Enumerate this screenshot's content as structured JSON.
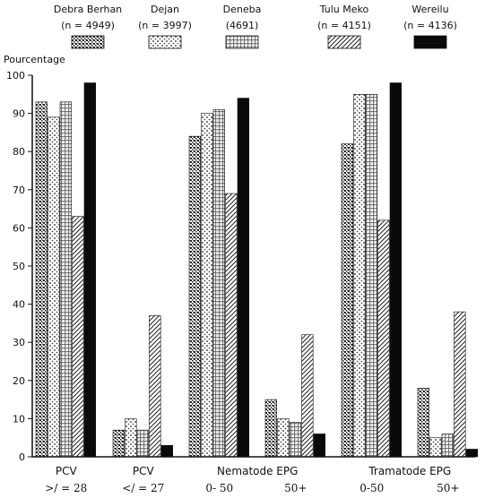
{
  "chart_data": {
    "type": "bar",
    "ylabel": "Pourcentage",
    "ylim": [
      0,
      100
    ],
    "yticks": [
      0,
      10,
      20,
      30,
      40,
      50,
      60,
      70,
      80,
      90,
      100
    ],
    "legend_placement": "top",
    "series": [
      {
        "name": "Debra Berhan",
        "n_label": "(n = 4949)",
        "pattern": "dense-dots",
        "values": [
          93,
          7,
          84,
          15,
          82,
          18
        ]
      },
      {
        "name": "Dejan",
        "n_label": "(n = 3997)",
        "pattern": "sparse-dots",
        "values": [
          89,
          10,
          90,
          10,
          95,
          5
        ]
      },
      {
        "name": "Deneba",
        "n_label": "(4691)",
        "pattern": "grid",
        "values": [
          93,
          7,
          91,
          9,
          95,
          6
        ]
      },
      {
        "name": "Tulu Meko",
        "n_label": "(n = 4151)",
        "pattern": "diagonal",
        "values": [
          63,
          37,
          69,
          32,
          62,
          38
        ]
      },
      {
        "name": "Wereilu",
        "n_label": "(n = 4136)",
        "pattern": "solid",
        "values": [
          98,
          3,
          94,
          6,
          98,
          2
        ]
      }
    ],
    "groups": [
      {
        "line1": "PCV",
        "line2": ">/ = 28"
      },
      {
        "line1": "PCV",
        "line2": "</ = 27"
      },
      {
        "line1": "",
        "line2": "0- 50"
      },
      {
        "line1": "",
        "line2": "50+"
      },
      {
        "line1": "",
        "line2": "0-50"
      },
      {
        "line1": "",
        "line2": "50+"
      }
    ],
    "group_spans": [
      {
        "label": "Nematode EPG",
        "groups": [
          2,
          3
        ]
      },
      {
        "label": "Tramatode EPG",
        "groups": [
          4,
          5
        ]
      }
    ]
  }
}
